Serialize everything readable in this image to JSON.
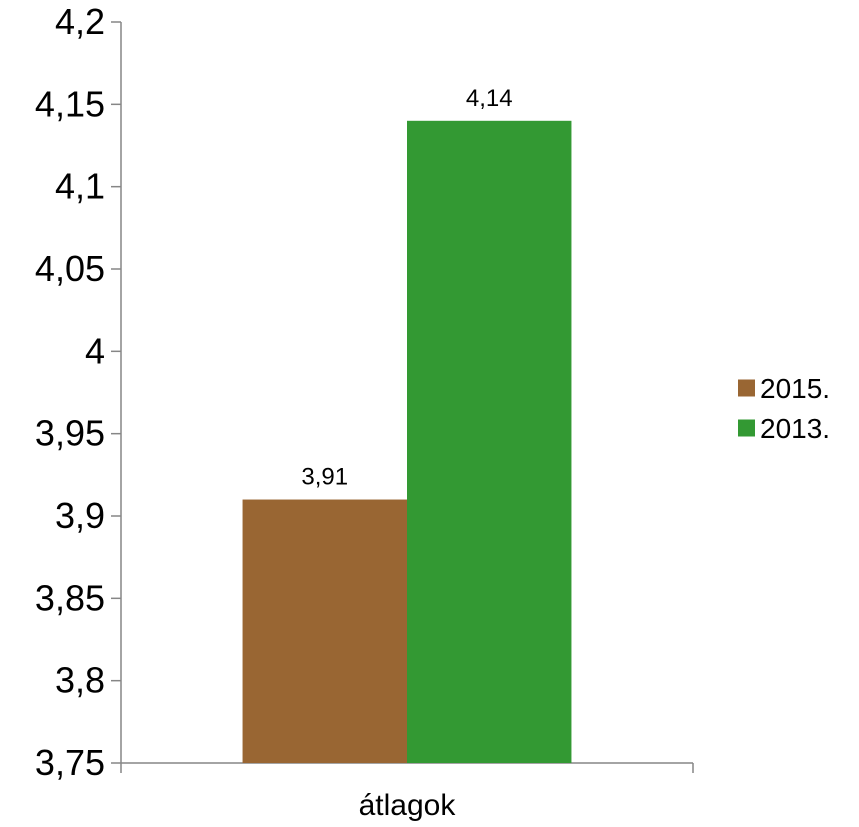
{
  "chart_data": {
    "type": "bar",
    "categories": [
      "átlagok"
    ],
    "series": [
      {
        "name": "2015.",
        "values": [
          3.91
        ],
        "value_labels": [
          "3,91"
        ],
        "color": "#996633"
      },
      {
        "name": "2013.",
        "values": [
          4.14
        ],
        "value_labels": [
          "4,14"
        ],
        "color": "#339933"
      }
    ],
    "ylim": [
      3.75,
      4.2
    ],
    "yticks": [
      3.75,
      3.8,
      3.85,
      3.9,
      3.95,
      4,
      4.05,
      4.1,
      4.15,
      4.2
    ],
    "ytick_labels": [
      "3,75",
      "3,8",
      "3,85",
      "3,9",
      "3,95",
      "4",
      "4,05",
      "4,1",
      "4,15",
      "4,2"
    ],
    "grid": false,
    "legend_position": "right"
  }
}
